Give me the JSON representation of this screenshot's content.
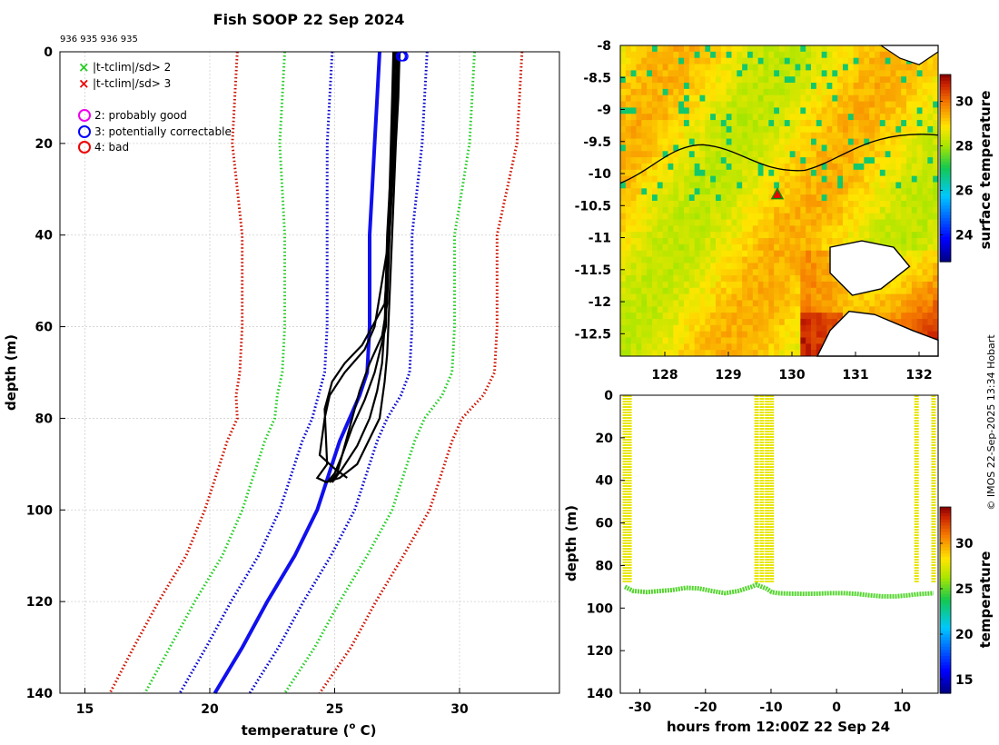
{
  "title": "Fish SOOP 22 Sep 2024",
  "header_note": "936 935 936 935",
  "credit": "© IMOS 22-Sep-2025 13:34 Hobart",
  "colors": {
    "profile": "#000000",
    "clim_mean": "#1010ee",
    "sd1": "#0000cc",
    "sd2": "#22cc22",
    "sd3": "#cc1100",
    "flag_good": "#ee00ee",
    "flag_correctable": "#0000ff",
    "flag_bad": "#ee0000"
  },
  "legend": {
    "sd2": "|t-tclim|/sd> 2",
    "sd3": "|t-tclim|/sd> 3",
    "good": "2: probably good",
    "correctable": "3: potentially correctable",
    "bad": "4: bad"
  },
  "chart_data": [
    {
      "type": "line",
      "id": "profile_plot",
      "xlabel": "temperature (",
      "xlabel_sup": "o",
      "xlabel_tail": " C)",
      "ylabel": "depth (m)",
      "xlim": [
        14,
        34
      ],
      "ylim": [
        0,
        140
      ],
      "xticks": [
        15,
        20,
        25,
        30
      ],
      "yticks": [
        0,
        20,
        40,
        60,
        80,
        100,
        120,
        140
      ],
      "climatology_depth": [
        0,
        10,
        20,
        30,
        40,
        50,
        60,
        70,
        75,
        80,
        85,
        90,
        95,
        100,
        110,
        120,
        130,
        140
      ],
      "climatology_mean": [
        26.8,
        26.7,
        26.6,
        26.5,
        26.4,
        26.4,
        26.4,
        26.3,
        26.0,
        25.6,
        25.2,
        24.9,
        24.6,
        24.3,
        23.4,
        22.3,
        21.3,
        20.2
      ],
      "climatology_sd": [
        1.9,
        1.9,
        1.9,
        1.8,
        1.7,
        1.7,
        1.7,
        1.7,
        1.65,
        1.5,
        1.5,
        1.5,
        1.5,
        1.5,
        1.45,
        1.45,
        1.45,
        1.4
      ],
      "profiles": [
        {
          "depth": [
            0,
            10,
            20,
            40,
            60,
            66,
            72,
            80,
            90,
            93,
            94
          ],
          "temp": [
            27.6,
            27.55,
            27.45,
            27.3,
            27.15,
            27.1,
            27.0,
            26.8,
            25.9,
            25.2,
            24.6
          ]
        },
        {
          "depth": [
            0,
            10,
            20,
            40,
            60,
            65,
            70,
            75,
            80,
            88,
            91,
            93
          ],
          "temp": [
            27.5,
            27.45,
            27.4,
            27.2,
            26.6,
            26.2,
            25.4,
            24.8,
            24.6,
            24.4,
            25.0,
            25.5
          ]
        },
        {
          "depth": [
            0,
            10,
            20,
            40,
            55,
            60,
            64,
            68,
            72,
            78,
            90,
            93,
            94
          ],
          "temp": [
            27.55,
            27.5,
            27.35,
            27.2,
            27.0,
            26.5,
            26.1,
            25.4,
            24.9,
            24.6,
            24.7,
            24.3,
            24.7
          ]
        },
        {
          "depth": [
            0,
            10,
            20,
            40,
            55,
            62,
            68,
            74,
            80,
            86,
            92,
            94
          ],
          "temp": [
            27.4,
            27.4,
            27.3,
            27.2,
            27.1,
            26.9,
            26.4,
            26.0,
            25.7,
            25.4,
            25.1,
            24.8
          ]
        },
        {
          "depth": [
            0,
            10,
            20,
            40,
            60,
            68,
            74,
            80,
            86,
            91,
            94
          ],
          "temp": [
            27.45,
            27.35,
            27.3,
            27.1,
            27.0,
            26.9,
            26.7,
            26.4,
            25.9,
            25.3,
            24.9
          ]
        },
        {
          "depth": [
            0,
            10,
            20,
            40,
            60,
            70,
            76,
            82,
            88,
            92,
            94
          ],
          "temp": [
            27.35,
            27.3,
            27.25,
            27.15,
            27.05,
            26.6,
            26.2,
            25.7,
            25.3,
            25.0,
            24.7
          ]
        }
      ],
      "surface_flags_temp": [
        27.65,
        27.7,
        27.75
      ]
    },
    {
      "type": "heatmap",
      "id": "sst_map",
      "xlim": [
        127.3,
        132.3
      ],
      "ylim": [
        -12.85,
        -8.0
      ],
      "xticks": [
        128,
        129,
        130,
        131,
        132
      ],
      "yticks": [
        -8,
        -8.5,
        -9,
        -9.5,
        -10,
        -10.5,
        -11,
        -11.5,
        -12,
        -12.5
      ],
      "ytick_labels": [
        "-8",
        "-8.5",
        "-9",
        "-9.5",
        "-10",
        "-10.5",
        "-11",
        "-11.5",
        "-12",
        "-12.5"
      ],
      "colorbar_label": "surface temperature",
      "colorbar_ticks": [
        24,
        26,
        28,
        30
      ],
      "colorbar_range": [
        22.8,
        31.2
      ],
      "ship_position": {
        "lon": 129.77,
        "lat": -10.32
      }
    },
    {
      "type": "scatter",
      "id": "section_plot",
      "xlabel": "hours from 12:00Z 22 Sep 24",
      "ylabel": "depth (m)",
      "xlim": [
        -33,
        15.5
      ],
      "ylim": [
        0,
        140
      ],
      "xticks": [
        -30,
        -20,
        -10,
        0,
        10
      ],
      "yticks": [
        0,
        20,
        40,
        60,
        80,
        100,
        120,
        140
      ],
      "colorbar_label": "temperature",
      "colorbar_ticks": [
        15,
        20,
        25,
        30
      ],
      "colorbar_range": [
        13.5,
        34.0
      ],
      "profile_hours": [
        -32.3,
        -31.6,
        -12.2,
        -11.4,
        -10.6,
        -9.9,
        12.2,
        14.8
      ],
      "bottom_hours": [
        -32.3,
        -31,
        -29,
        -27,
        -25,
        -23,
        -21,
        -19,
        -17,
        -15,
        -13,
        -12.2,
        -11.4,
        -10.6,
        -9.9,
        -9,
        -7,
        -5,
        -3,
        -1,
        1,
        3,
        5,
        7,
        9,
        11,
        12.2,
        14.8
      ],
      "bottom_depth": [
        90,
        92,
        92.5,
        92,
        91.5,
        90.5,
        90.8,
        92,
        93,
        92,
        90,
        89,
        90,
        91,
        92.5,
        93,
        93.2,
        93.3,
        93.2,
        93,
        93,
        93.3,
        94,
        94.5,
        94.5,
        94,
        93.5,
        93
      ]
    }
  ]
}
